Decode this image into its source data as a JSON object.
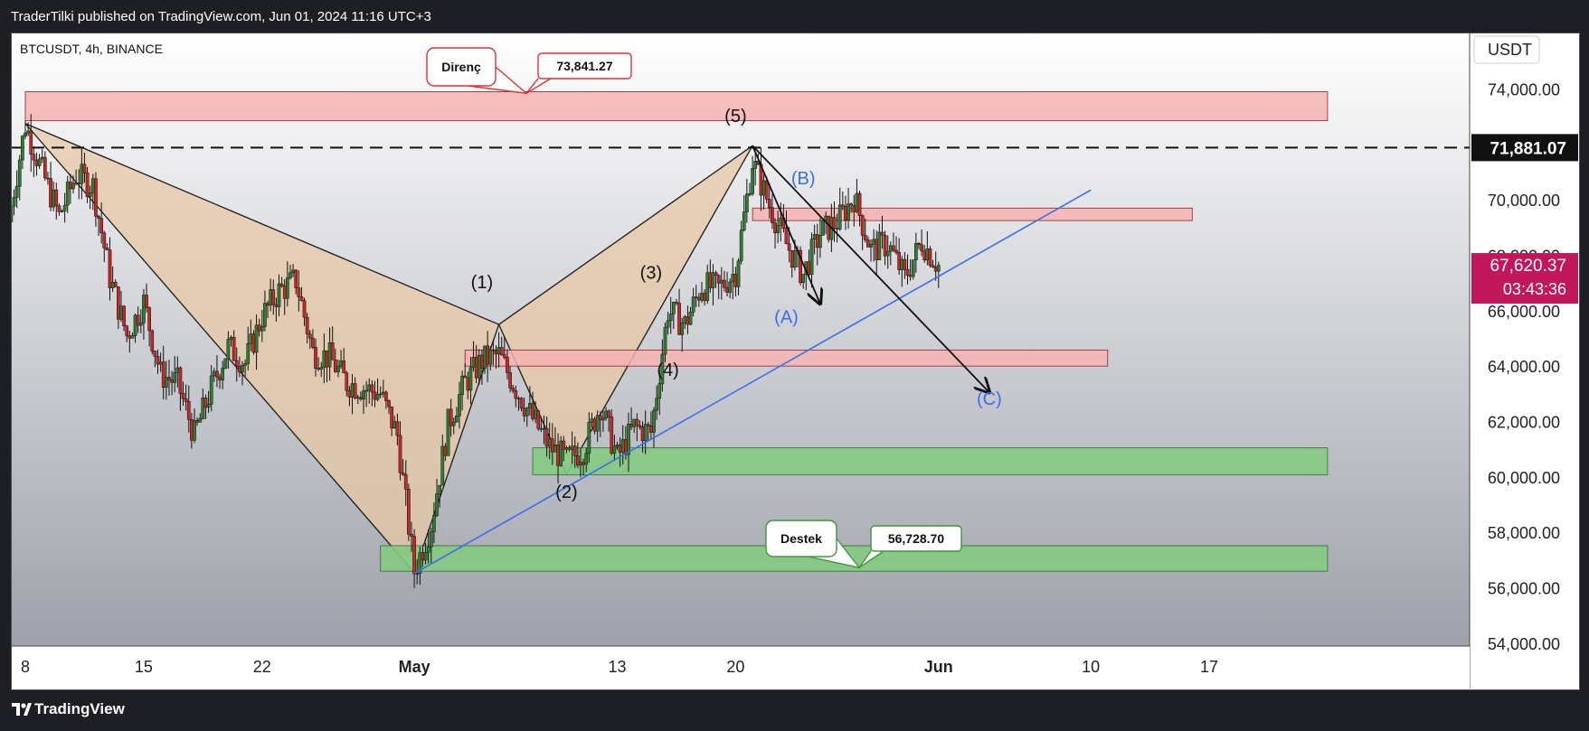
{
  "header": {
    "published_text": "TraderTilki published on TradingView.com, Jun 01, 2024 11:16 UTC+3"
  },
  "footer": {
    "brand": "TradingView"
  },
  "colors": {
    "resistance_zone": "#f6b3b3",
    "support_zone": "#85c983",
    "pattern_fill": "#e7c8a6",
    "trend_line": "#3a6ee8",
    "current_price_bg": "#c2185b",
    "up_candle": "#2e7d32",
    "down_candle": "#c62828"
  },
  "chart_data": {
    "type": "candlestick",
    "symbol_label": "BTCUSDT, 4h, BINANCE",
    "currency": "USDT",
    "y_ticks": [
      "74,000.00",
      "72,000.00",
      "70,000.00",
      "68,000.00",
      "66,000.00",
      "64,000.00",
      "62,000.00",
      "60,000.00",
      "58,000.00",
      "56,000.00",
      "54,000.00"
    ],
    "ylim": [
      53900,
      76000
    ],
    "x_ticks": [
      {
        "label": "8",
        "date": "2024-04-08",
        "bold": false
      },
      {
        "label": "15",
        "date": "2024-04-15",
        "bold": false
      },
      {
        "label": "22",
        "date": "2024-04-22",
        "bold": false
      },
      {
        "label": "May",
        "date": "2024-05-01",
        "bold": true
      },
      {
        "label": "13",
        "date": "2024-05-13",
        "bold": false
      },
      {
        "label": "20",
        "date": "2024-05-20",
        "bold": false
      },
      {
        "label": "Jun",
        "date": "2024-06-01",
        "bold": true
      },
      {
        "label": "10",
        "date": "2024-06-10",
        "bold": false
      },
      {
        "label": "17",
        "date": "2024-06-17",
        "bold": false
      }
    ],
    "dashed_level": {
      "value": 71881.07,
      "label": "71,881.07"
    },
    "current_price": {
      "value": 67620.37,
      "label": "67,620.37",
      "countdown": "03:43:36"
    },
    "zones": [
      {
        "kind": "resistance",
        "from": "2024-04-08",
        "to": "2024-06-24",
        "low": 72850,
        "high": 73900
      },
      {
        "kind": "resistance",
        "from": "2024-05-21",
        "to": "2024-06-16",
        "low": 69250,
        "high": 69700
      },
      {
        "kind": "resistance",
        "from": "2024-05-04",
        "to": "2024-06-11",
        "low": 64000,
        "high": 64580
      },
      {
        "kind": "support",
        "from": "2024-05-08",
        "to": "2024-06-24",
        "low": 60080,
        "high": 61050
      },
      {
        "kind": "support",
        "from": "2024-04-29",
        "to": "2024-06-24",
        "low": 56600,
        "high": 57520
      }
    ],
    "callouts": [
      {
        "label": "Direnç",
        "value_label": "73,841.27",
        "value": 73841.27,
        "kind": "resistance"
      },
      {
        "label": "Destek",
        "value_label": "56,728.70",
        "value": 56728.7,
        "kind": "support"
      }
    ],
    "harmonic_points": [
      {
        "date": "2024-04-08",
        "value": 72750
      },
      {
        "date": "2024-05-01",
        "value": 56552
      },
      {
        "date": "2024-05-06",
        "value": 65500
      },
      {
        "date": "2024-05-10",
        "value": 60100
      },
      {
        "date": "2024-05-21",
        "value": 71950
      }
    ],
    "wave_labels": [
      {
        "label": "(1)",
        "date": "2024-05-05",
        "value": 66800,
        "color": "black"
      },
      {
        "label": "(2)",
        "date": "2024-05-10",
        "value": 59250,
        "color": "black"
      },
      {
        "label": "(3)",
        "date": "2024-05-15",
        "value": 67150,
        "color": "black"
      },
      {
        "label": "(4)",
        "date": "2024-05-16",
        "value": 63650,
        "color": "black"
      },
      {
        "label": "(5)",
        "date": "2024-05-20",
        "value": 72800,
        "color": "black"
      },
      {
        "label": "(A)",
        "date": "2024-05-23",
        "value": 65550,
        "color": "blue"
      },
      {
        "label": "(B)",
        "date": "2024-05-24",
        "value": 70550,
        "color": "blue"
      },
      {
        "label": "(C)",
        "date": "2024-06-04",
        "value": 62600,
        "color": "blue"
      }
    ],
    "trend_line": {
      "from": {
        "date": "2024-05-01",
        "value": 56520
      },
      "to": {
        "date": "2024-06-10",
        "value": 70350
      }
    },
    "arrows": [
      {
        "from": {
          "date": "2024-05-21",
          "value": 71950
        },
        "to": {
          "date": "2024-05-25",
          "value": 66250
        }
      },
      {
        "from": {
          "date": "2024-05-21",
          "value": 71950
        },
        "to": {
          "date": "2024-06-04",
          "value": 63050
        }
      }
    ],
    "candle_path": [
      [
        "2024-04-07",
        69200
      ],
      [
        "2024-04-08",
        72700
      ],
      [
        "2024-04-09",
        71000
      ],
      [
        "2024-04-10",
        69400
      ],
      [
        "2024-04-11",
        70900
      ],
      [
        "2024-04-12",
        70500
      ],
      [
        "2024-04-13",
        67200
      ],
      [
        "2024-04-14",
        65100
      ],
      [
        "2024-04-15",
        66300
      ],
      [
        "2024-04-16",
        63700
      ],
      [
        "2024-04-17",
        63400
      ],
      [
        "2024-04-18",
        61500
      ],
      [
        "2024-04-19",
        63200
      ],
      [
        "2024-04-20",
        64700
      ],
      [
        "2024-04-21",
        64100
      ],
      [
        "2024-04-22",
        65800
      ],
      [
        "2024-04-23",
        66700
      ],
      [
        "2024-04-24",
        67100
      ],
      [
        "2024-04-25",
        64500
      ],
      [
        "2024-04-26",
        64300
      ],
      [
        "2024-04-27",
        63400
      ],
      [
        "2024-04-28",
        63200
      ],
      [
        "2024-04-29",
        63000
      ],
      [
        "2024-04-30",
        61500
      ],
      [
        "2024-05-01",
        56600
      ],
      [
        "2024-05-02",
        58300
      ],
      [
        "2024-05-03",
        61900
      ],
      [
        "2024-05-04",
        63400
      ],
      [
        "2024-05-05",
        64200
      ],
      [
        "2024-05-06",
        64400
      ],
      [
        "2024-05-07",
        63200
      ],
      [
        "2024-05-08",
        62100
      ],
      [
        "2024-05-09",
        61100
      ],
      [
        "2024-05-10",
        60600
      ],
      [
        "2024-05-11",
        61000
      ],
      [
        "2024-05-12",
        62600
      ],
      [
        "2024-05-13",
        60700
      ],
      [
        "2024-05-14",
        61800
      ],
      [
        "2024-05-15",
        61600
      ],
      [
        "2024-05-16",
        66000
      ],
      [
        "2024-05-17",
        65500
      ],
      [
        "2024-05-18",
        66900
      ],
      [
        "2024-05-19",
        66800
      ],
      [
        "2024-05-20",
        67400
      ],
      [
        "2024-05-21",
        71400
      ],
      [
        "2024-05-22",
        69800
      ],
      [
        "2024-05-23",
        68400
      ],
      [
        "2024-05-24",
        67300
      ],
      [
        "2024-05-25",
        68800
      ],
      [
        "2024-05-26",
        69200
      ],
      [
        "2024-05-27",
        70100
      ],
      [
        "2024-05-28",
        68200
      ],
      [
        "2024-05-29",
        68400
      ],
      [
        "2024-05-30",
        67200
      ],
      [
        "2024-05-31",
        68500
      ],
      [
        "2024-06-01",
        67620
      ]
    ],
    "grid": false
  }
}
